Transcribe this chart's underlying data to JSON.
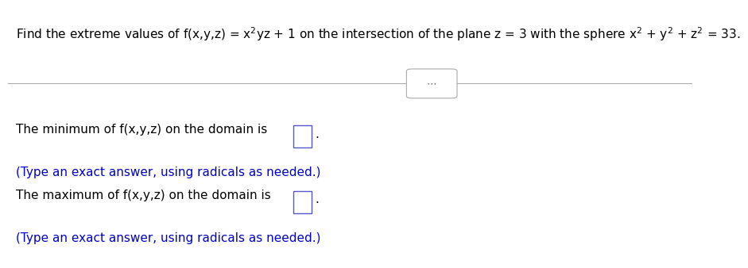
{
  "title": "Find the extreme values of f(x,y,z) = x$^{2}$yz + 1 on the intersection of the plane z = 3 with the sphere x$^{2}$ + y$^{2}$ + z$^{2}$ = 33.",
  "line1_black": "The minimum of f(x,y,z) on the domain is",
  "line1_hint": "(Type an exact answer, using radicals as needed.)",
  "line2_black": "The maximum of f(x,y,z) on the domain is",
  "line2_hint": "(Type an exact answer, using radicals as needed.)",
  "bg_color": "#ffffff",
  "text_color_black": "#000000",
  "text_color_blue": "#0000cc",
  "divider_color": "#aaaaaa",
  "box_color": "#5555cc",
  "title_fontsize": 11.0,
  "body_fontsize": 11.0,
  "hint_fontsize": 11.0
}
